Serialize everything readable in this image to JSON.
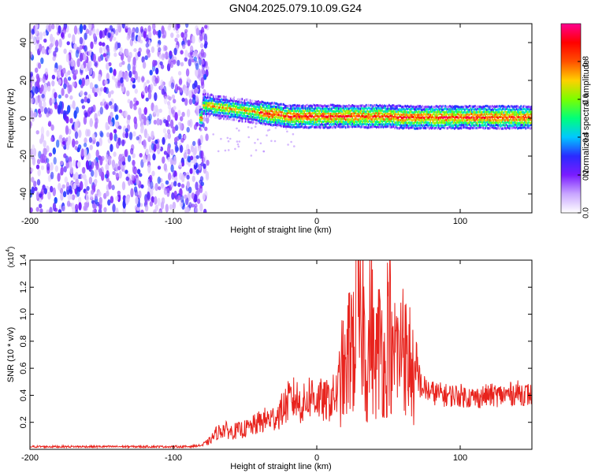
{
  "title": "GN04.2025.079.10.09.G24",
  "chart_data": [
    {
      "type": "heatmap",
      "xlabel": "Height of straight line (km)",
      "ylabel": "Frequency (Hz)",
      "xlim": [
        -200,
        150
      ],
      "ylim": [
        -50,
        50
      ],
      "x_ticks": [
        -200,
        -100,
        0,
        100
      ],
      "y_ticks": [
        40,
        20,
        0,
        -20,
        -40
      ],
      "noise_region_x": [
        -200,
        -80
      ],
      "signal_band": {
        "x": [
          -80,
          -70,
          -60,
          -50,
          -40,
          -30,
          -20,
          -10,
          0,
          10,
          20,
          30,
          40,
          50,
          60,
          70,
          80,
          90,
          100,
          110,
          120,
          130,
          140,
          150
        ],
        "freq": [
          7,
          6,
          5,
          4,
          3,
          2,
          1,
          1,
          1,
          1,
          1,
          1,
          1,
          1,
          0.5,
          0.5,
          0.5,
          0.5,
          0.5,
          0.5,
          0.5,
          0.5,
          0.5,
          0.5
        ]
      },
      "colorbar": {
        "label": "Normalized spectral amplitude",
        "ticks": [
          0.0,
          0.2,
          0.4,
          0.6,
          0.8
        ],
        "range": [
          0,
          1
        ],
        "colors": [
          "#ffffff",
          "#c9a6ff",
          "#7a1cff",
          "#2a2aff",
          "#00c8ff",
          "#00ff7a",
          "#7aff00",
          "#ffd000",
          "#ff5000",
          "#ff0000",
          "#ff0090"
        ]
      }
    },
    {
      "type": "line",
      "xlabel": "Height of straight line (km)",
      "ylabel": "SNR (10 * v/v)",
      "y_multiplier_label": "(x10",
      "y_multiplier_exp": "4",
      "y_multiplier_close": ")",
      "xlim": [
        -200,
        150
      ],
      "ylim": [
        0,
        1.4
      ],
      "x_ticks": [
        -200,
        -100,
        0,
        100
      ],
      "y_ticks": [
        0.2,
        0.4,
        0.6,
        0.8,
        1.0,
        1.2,
        1.4
      ],
      "color": "#e8231d",
      "series": [
        {
          "x": [
            -200,
            -180,
            -160,
            -140,
            -120,
            -100,
            -90,
            -80,
            -75,
            -70,
            -65,
            -60,
            -55,
            -50,
            -45,
            -40,
            -35,
            -30,
            -25,
            -20,
            -15,
            -10,
            -5,
            0,
            5,
            10,
            15,
            18,
            20,
            22,
            24,
            26,
            28,
            30,
            32,
            35,
            38,
            40,
            43,
            45,
            48,
            50,
            53,
            55,
            58,
            60,
            63,
            65,
            68,
            70,
            75,
            80,
            90,
            100,
            110,
            120,
            130,
            140,
            150
          ],
          "y": [
            0.02,
            0.02,
            0.02,
            0.02,
            0.02,
            0.02,
            0.02,
            0.03,
            0.06,
            0.12,
            0.15,
            0.13,
            0.14,
            0.15,
            0.17,
            0.2,
            0.22,
            0.23,
            0.28,
            0.35,
            0.38,
            0.32,
            0.4,
            0.38,
            0.35,
            0.37,
            0.42,
            0.6,
            0.5,
            0.7,
            0.9,
            0.65,
            1.4,
            0.8,
            1.05,
            0.55,
            1.0,
            0.6,
            0.75,
            0.85,
            0.5,
            1.1,
            0.55,
            0.8,
            0.6,
            1.0,
            0.55,
            0.7,
            0.45,
            0.5,
            0.45,
            0.42,
            0.4,
            0.4,
            0.38,
            0.4,
            0.4,
            0.42,
            0.4
          ]
        }
      ]
    }
  ]
}
